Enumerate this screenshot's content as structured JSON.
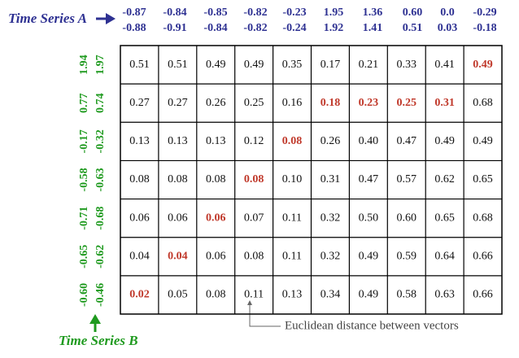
{
  "header": {
    "series_a": {
      "label": "Time Series A",
      "columns": [
        [
          "-0.87",
          "-0.88"
        ],
        [
          "-0.84",
          "-0.91"
        ],
        [
          "-0.85",
          "-0.84"
        ],
        [
          "-0.82",
          "-0.82"
        ],
        [
          "-0.23",
          "-0.24"
        ],
        [
          "1.95",
          "1.92"
        ],
        [
          "1.36",
          "1.41"
        ],
        [
          "0.60",
          "0.51"
        ],
        [
          "0.0",
          "0.03"
        ],
        [
          "-0.29",
          "-0.18"
        ]
      ]
    },
    "series_b": {
      "label": "Time Series B",
      "rows": [
        [
          "1.94",
          "1.97"
        ],
        [
          "0.77",
          "0.74"
        ],
        [
          "-0.17",
          "-0.32"
        ],
        [
          "-0.58",
          "-0.63"
        ],
        [
          "-0.71",
          "-0.68"
        ],
        [
          "-0.65",
          "-0.62"
        ],
        [
          "-0.60",
          "-0.46"
        ]
      ]
    }
  },
  "table": {
    "rows": [
      [
        {
          "text": "0.51"
        },
        {
          "text": "0.51"
        },
        {
          "text": "0.49"
        },
        {
          "text": "0.49"
        },
        {
          "text": "0.35"
        },
        {
          "text": "0.17"
        },
        {
          "text": "0.21"
        },
        {
          "text": "0.33"
        },
        {
          "text": "0.41"
        },
        {
          "text": "0.49",
          "path": true
        }
      ],
      [
        {
          "text": "0.27"
        },
        {
          "text": "0.27"
        },
        {
          "text": "0.26"
        },
        {
          "text": "0.25"
        },
        {
          "text": "0.16"
        },
        {
          "text": "0.18",
          "path": true
        },
        {
          "text": "0.23",
          "path": true
        },
        {
          "text": "0.25",
          "path": true
        },
        {
          "text": "0.31",
          "path": true
        },
        {
          "text": "0.68"
        }
      ],
      [
        {
          "text": "0.13"
        },
        {
          "text": "0.13"
        },
        {
          "text": "0.13"
        },
        {
          "text": "0.12"
        },
        {
          "text": "0.08",
          "path": true
        },
        {
          "text": "0.26"
        },
        {
          "text": "0.40"
        },
        {
          "text": "0.47"
        },
        {
          "text": "0.49"
        },
        {
          "text": "0.49"
        }
      ],
      [
        {
          "text": "0.08"
        },
        {
          "text": "0.08"
        },
        {
          "text": "0.08"
        },
        {
          "text": "0.08",
          "path": true
        },
        {
          "text": "0.10"
        },
        {
          "text": "0.31"
        },
        {
          "text": "0.47"
        },
        {
          "text": "0.57"
        },
        {
          "text": "0.62"
        },
        {
          "text": "0.65"
        }
      ],
      [
        {
          "text": "0.06"
        },
        {
          "text": "0.06"
        },
        {
          "text": "0.06",
          "path": true
        },
        {
          "text": "0.07"
        },
        {
          "text": "0.11"
        },
        {
          "text": "0.32"
        },
        {
          "text": "0.50"
        },
        {
          "text": "0.60"
        },
        {
          "text": "0.65"
        },
        {
          "text": "0.68"
        }
      ],
      [
        {
          "text": "0.04"
        },
        {
          "text": "0.04",
          "path": true
        },
        {
          "text": "0.06"
        },
        {
          "text": "0.08"
        },
        {
          "text": "0.11"
        },
        {
          "text": "0.32"
        },
        {
          "text": "0.49"
        },
        {
          "text": "0.59"
        },
        {
          "text": "0.64"
        },
        {
          "text": "0.66"
        }
      ],
      [
        {
          "text": "0.02",
          "path": true
        },
        {
          "text": "0.05"
        },
        {
          "text": "0.08"
        },
        {
          "text": "0.11"
        },
        {
          "text": "0.13"
        },
        {
          "text": "0.34"
        },
        {
          "text": "0.49"
        },
        {
          "text": "0.58"
        },
        {
          "text": "0.63"
        },
        {
          "text": "0.66"
        }
      ]
    ]
  },
  "annotation": "Euclidean distance between vectors"
}
